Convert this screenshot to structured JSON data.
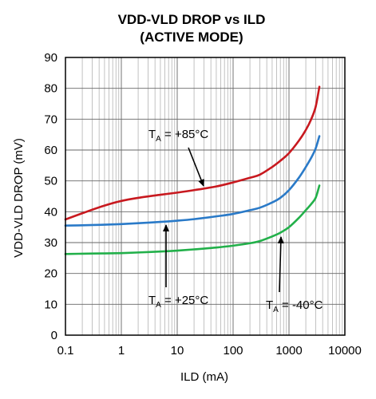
{
  "chart_data": {
    "type": "line",
    "title": [
      "VDD-VLD DROP vs ILD",
      "(ACTIVE MODE)"
    ],
    "xlabel": "ILD (mA)",
    "ylabel": "VDD-VLD DROP (mV)",
    "x_scale": "log",
    "xlim": [
      0.1,
      10000
    ],
    "ylim": [
      0,
      90
    ],
    "x_ticks": [
      0.1,
      1,
      10,
      100,
      1000,
      10000
    ],
    "x_tick_labels": [
      "0.1",
      "1",
      "10",
      "100",
      "1000",
      "10000"
    ],
    "y_ticks": [
      0,
      10,
      20,
      30,
      40,
      50,
      60,
      70,
      80,
      90
    ],
    "y_tick_labels": [
      "0",
      "10",
      "20",
      "30",
      "40",
      "50",
      "60",
      "70",
      "80",
      "90"
    ],
    "grid": true,
    "series": [
      {
        "name": "TA = +85°C",
        "color": "#c8191f",
        "x": [
          0.1,
          0.2,
          0.5,
          1,
          2,
          5,
          10,
          20,
          50,
          100,
          200,
          300,
          500,
          700,
          1000,
          1500,
          2000,
          2500,
          3000,
          3500
        ],
        "y": [
          37.5,
          39.5,
          42,
          43.5,
          44.5,
          45.5,
          46.2,
          47,
          48.2,
          49.5,
          51,
          52,
          54.5,
          56.5,
          59,
          63,
          66.5,
          70,
          74,
          80.5
        ]
      },
      {
        "name": "TA = +25°C",
        "color": "#2a7ac8",
        "x": [
          0.1,
          0.2,
          0.5,
          1,
          2,
          5,
          10,
          20,
          50,
          100,
          200,
          300,
          500,
          700,
          1000,
          1500,
          2000,
          2500,
          3000,
          3500
        ],
        "y": [
          35.5,
          35.6,
          35.8,
          36,
          36.3,
          36.7,
          37.1,
          37.6,
          38.5,
          39.3,
          40.5,
          41.3,
          43,
          44.5,
          47,
          51,
          54.5,
          57.5,
          60.5,
          64.5
        ]
      },
      {
        "name": "TA = -40°C",
        "color": "#22b04a",
        "x": [
          0.1,
          0.2,
          0.5,
          1,
          2,
          5,
          10,
          20,
          50,
          100,
          200,
          300,
          500,
          700,
          1000,
          1500,
          2000,
          2500,
          3000,
          3500
        ],
        "y": [
          26.3,
          26.4,
          26.5,
          26.6,
          26.8,
          27.1,
          27.4,
          27.8,
          28.4,
          29,
          29.8,
          30.5,
          32,
          33.2,
          35,
          38,
          40.5,
          42.5,
          44.5,
          48.5
        ]
      }
    ],
    "annotations": [
      {
        "main": "T",
        "sub": "A",
        "rest": " = +85°C",
        "series": 0
      },
      {
        "main": "T",
        "sub": "A",
        "rest": " = +25°C",
        "series": 1
      },
      {
        "main": "T",
        "sub": "A",
        "rest": " = -40°C",
        "series": 2
      }
    ]
  }
}
